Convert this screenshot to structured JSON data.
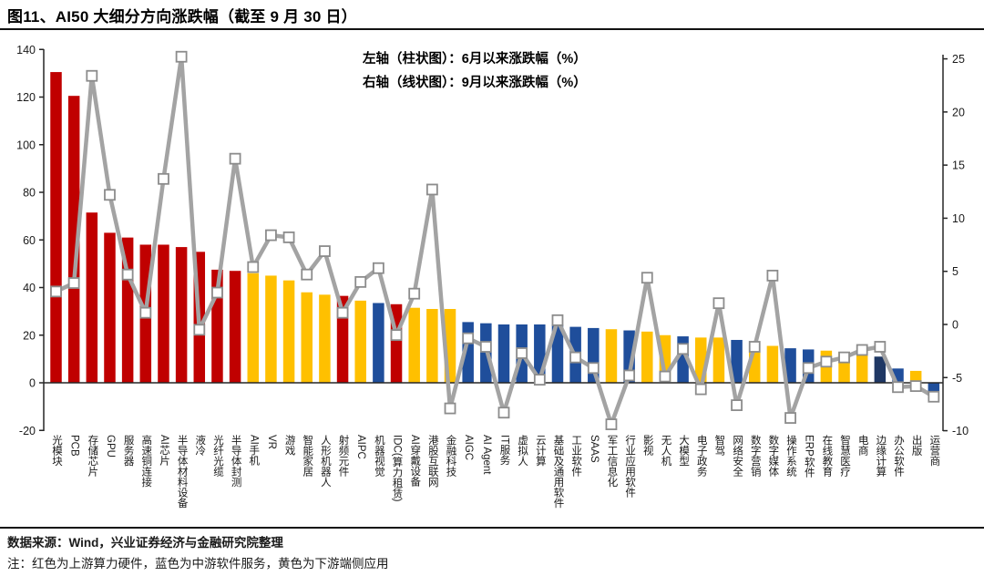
{
  "title": "图11、AI50 大细分方向涨跌幅（截至 9 月 30 日）",
  "legend": {
    "line1": "左轴（柱状图）：6月以来涨跌幅（%）",
    "line2": "右轴（线状图）：9月以来涨跌幅（%）"
  },
  "footer": {
    "source": "数据来源：Wind，兴业证券经济与金融研究院整理",
    "note": "注：红色为上游算力硬件，蓝色为中游软件服务，黄色为下游端侧应用"
  },
  "colors": {
    "red": "#C00000",
    "yellow": "#FFC000",
    "blue": "#1F4E9B",
    "navy": "#1F3864",
    "line": "#A3A3A3",
    "marker_fill": "#FFFFFF",
    "marker_stroke": "#8C8C8C",
    "axis": "#262626",
    "tick_text": "#1a1a1a"
  },
  "chart_data": {
    "type": "bar+line combo",
    "title": "图11、AI50 大细分方向涨跌幅（截至 9 月 30 日）",
    "grid": false,
    "legend_position": "top-center",
    "categories": [
      "光模块",
      "PCB",
      "存储芯片",
      "GPU",
      "服务器",
      "高速铜连接",
      "AI芯片",
      "半导体材料设备",
      "液冷",
      "光纤光缆",
      "半导体封测",
      "AI手机",
      "VR",
      "游戏",
      "智能家居",
      "人形机器人",
      "射频元件",
      "AIPC",
      "机器视觉",
      "IDC(算力租赁)",
      "AI穿戴设备",
      "港股互联网",
      "金融科技",
      "AIGC",
      "AI Agent",
      "IT服务",
      "虚拟人",
      "云计算",
      "基础及通用软件",
      "工业软件",
      "SAAS",
      "军工信息化",
      "行业应用软件",
      "影视",
      "无人机",
      "大模型",
      "电子政务",
      "智驾",
      "网络安全",
      "数字营销",
      "数字媒体",
      "操作系统",
      "ERP软件",
      "在线教育",
      "智慧医疗",
      "电商",
      "边缘计算",
      "办公软件",
      "出版",
      "运营商"
    ],
    "series": [
      {
        "name": "6月以来涨跌幅（%）",
        "chart": "bar",
        "axis": "left",
        "values": [
          130.5,
          120.5,
          71.5,
          63,
          61,
          58,
          58,
          57,
          55,
          47.5,
          47,
          46,
          45,
          43,
          38,
          37,
          36.5,
          34.5,
          33.5,
          33,
          31.5,
          31,
          31,
          25.5,
          25,
          24.5,
          24.5,
          24.5,
          24.5,
          23.5,
          23,
          22.5,
          22,
          21.5,
          20,
          19.5,
          19,
          19,
          18,
          16,
          15.5,
          14.5,
          14,
          13.5,
          13,
          14,
          11,
          6,
          5,
          -3.5
        ],
        "bar_groups": [
          "red",
          "red",
          "red",
          "red",
          "red",
          "red",
          "red",
          "red",
          "red",
          "red",
          "red",
          "yellow",
          "yellow",
          "yellow",
          "yellow",
          "yellow",
          "red",
          "yellow",
          "blue",
          "red",
          "yellow",
          "yellow",
          "yellow",
          "blue",
          "blue",
          "blue",
          "blue",
          "blue",
          "blue",
          "blue",
          "blue",
          "yellow",
          "blue",
          "yellow",
          "yellow",
          "blue",
          "yellow",
          "yellow",
          "blue",
          "yellow",
          "yellow",
          "blue",
          "blue",
          "yellow",
          "yellow",
          "yellow",
          "navy",
          "blue",
          "yellow",
          "blue"
        ]
      },
      {
        "name": "9月以来涨跌幅（%）",
        "chart": "line",
        "axis": "right",
        "values": [
          3.1,
          3.9,
          23.4,
          12.2,
          4.7,
          1.1,
          13.7,
          25.2,
          -0.5,
          3,
          15.6,
          5.4,
          8.4,
          8.2,
          4.7,
          6.9,
          1.1,
          4,
          5.3,
          -1,
          2.9,
          12.7,
          -7.9,
          -1.3,
          -2.1,
          -8.3,
          -2.7,
          -5.2,
          0.4,
          -3.1,
          -4.1,
          -9.4,
          -4.8,
          4.4,
          -4.9,
          -2.3,
          -6.1,
          2,
          -7.6,
          -2.1,
          4.6,
          -8.8,
          -4.1,
          -3.5,
          -3.1,
          -2.4,
          -2.1,
          -5.9,
          -5.8,
          -6.8
        ]
      }
    ],
    "left_axis": {
      "label": "6月以来涨跌幅（%）",
      "min": -20,
      "max": 140,
      "step": 20,
      "ticks": [
        140,
        120,
        100,
        80,
        60,
        40,
        20,
        0,
        -20
      ]
    },
    "right_axis": {
      "label": "9月以来涨跌幅（%）",
      "min": -10,
      "max": 25,
      "step": 5,
      "ticks": [
        25,
        20,
        15,
        10,
        5,
        0,
        -5,
        -10
      ]
    }
  }
}
